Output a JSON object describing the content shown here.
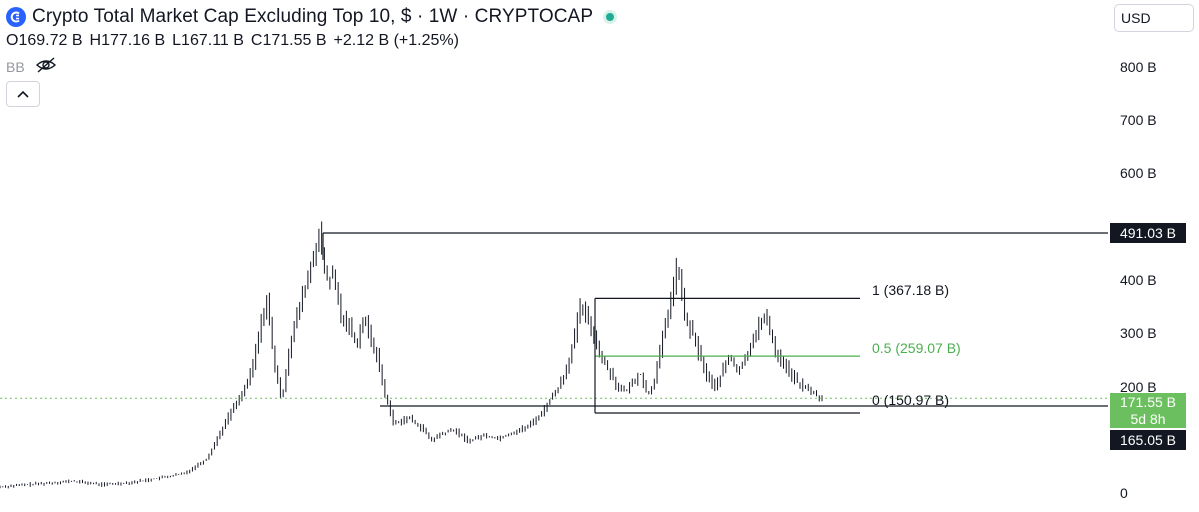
{
  "header": {
    "title": "Crypto Total Market Cap Excluding Top 10, $ · 1W · CRYPTOCAP",
    "ohlc": [
      {
        "k": "O",
        "v": "169.72 B"
      },
      {
        "k": "H",
        "v": "177.16 B"
      },
      {
        "k": "L",
        "v": "167.11 B"
      },
      {
        "k": "C",
        "v": "171.55 B"
      },
      {
        "k": "",
        "v": "+2.12 B (+1.25%)"
      }
    ],
    "indicator": "BB"
  },
  "currency": "USD",
  "colors": {
    "candle": "#131722",
    "fib_mid": "#4caf50",
    "current_tag": "#6cbf5e",
    "dark_tag": "#131722"
  },
  "chart_data": {
    "type": "candlestick",
    "y_axis_ticks": [
      "800 B",
      "700 B",
      "600 B",
      "400 B",
      "300 B",
      "200 B",
      "0"
    ],
    "ylim": [
      0,
      860
    ],
    "approx_close_path": [
      [
        0,
        12
      ],
      [
        6,
        18
      ],
      [
        10,
        22
      ],
      [
        14,
        16
      ],
      [
        18,
        20
      ],
      [
        22,
        28
      ],
      [
        25,
        35
      ],
      [
        28,
        60
      ],
      [
        30,
        110
      ],
      [
        32,
        160
      ],
      [
        34,
        230
      ],
      [
        35,
        300
      ],
      [
        36,
        370
      ],
      [
        37,
        250
      ],
      [
        38,
        170
      ],
      [
        39,
        270
      ],
      [
        40,
        330
      ],
      [
        41,
        380
      ],
      [
        42,
        430
      ],
      [
        43,
        490
      ],
      [
        44,
        400
      ],
      [
        45,
        410
      ],
      [
        46,
        330
      ],
      [
        47,
        320
      ],
      [
        48,
        280
      ],
      [
        49,
        330
      ],
      [
        50,
        290
      ],
      [
        51,
        250
      ],
      [
        52,
        170
      ],
      [
        53,
        120
      ],
      [
        55,
        130
      ],
      [
        57,
        110
      ],
      [
        58,
        90
      ],
      [
        59,
        100
      ],
      [
        61,
        110
      ],
      [
        63,
        90
      ],
      [
        65,
        100
      ],
      [
        67,
        95
      ],
      [
        69,
        105
      ],
      [
        71,
        115
      ],
      [
        73,
        140
      ],
      [
        74,
        170
      ],
      [
        75,
        200
      ],
      [
        76,
        230
      ],
      [
        77,
        280
      ],
      [
        78,
        350
      ],
      [
        79,
        330
      ],
      [
        80,
        290
      ],
      [
        81,
        250
      ],
      [
        82,
        230
      ],
      [
        83,
        200
      ],
      [
        84,
        190
      ],
      [
        85,
        210
      ],
      [
        86,
        230
      ],
      [
        87,
        180
      ],
      [
        88,
        220
      ],
      [
        89,
        290
      ],
      [
        90,
        360
      ],
      [
        91,
        430
      ],
      [
        92,
        330
      ],
      [
        93,
        300
      ],
      [
        94,
        260
      ],
      [
        95,
        220
      ],
      [
        96,
        200
      ],
      [
        97,
        230
      ],
      [
        98,
        260
      ],
      [
        99,
        230
      ],
      [
        100,
        250
      ],
      [
        101,
        290
      ],
      [
        102,
        320
      ],
      [
        103,
        330
      ],
      [
        104,
        270
      ],
      [
        105,
        250
      ],
      [
        106,
        230
      ],
      [
        107,
        210
      ],
      [
        108,
        200
      ],
      [
        109,
        190
      ],
      [
        110,
        171.55
      ]
    ],
    "horizontal_levels": [
      {
        "label": "491.03 B",
        "value": 491.03
      },
      {
        "label": "165.05 B",
        "value": 165.05
      }
    ],
    "fib_levels": [
      {
        "label": "1 (367.18 B)",
        "value": 367.18
      },
      {
        "label": "0.5 (259.07 B)",
        "value": 259.07
      },
      {
        "label": "0 (150.97 B)",
        "value": 150.97
      }
    ],
    "current_price": {
      "label": "171.55 B",
      "countdown": "5d 8h",
      "value": 171.55
    }
  }
}
